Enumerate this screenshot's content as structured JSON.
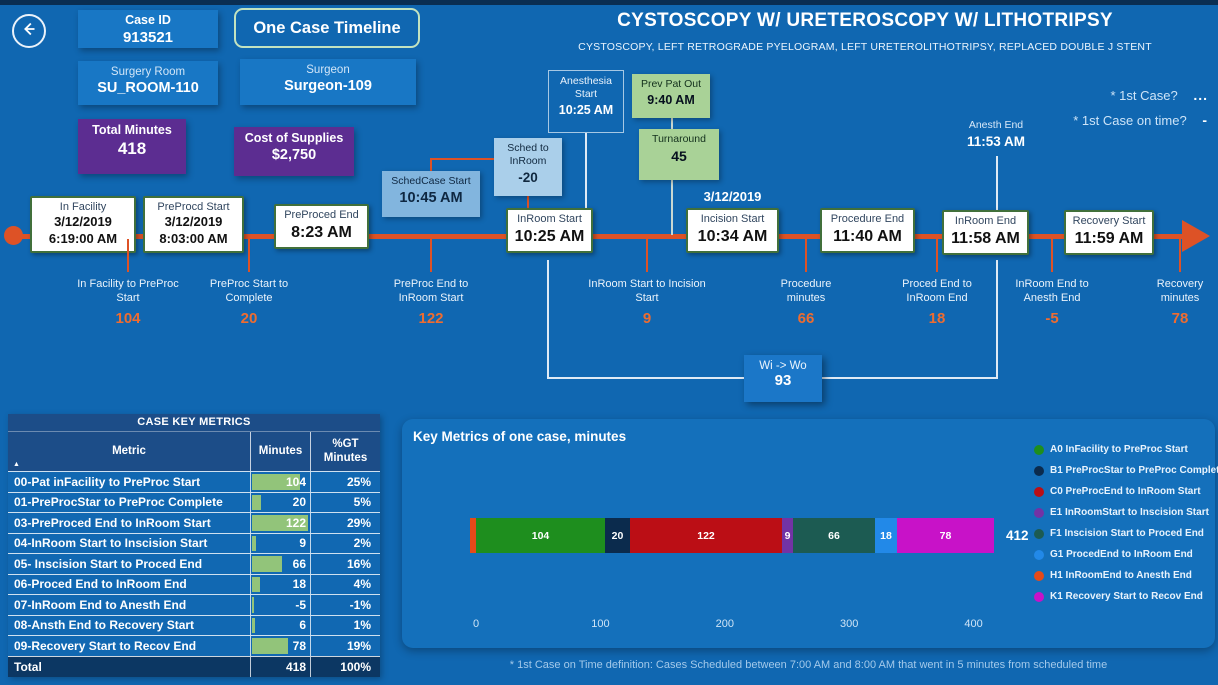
{
  "header": {
    "case_id_label": "Case ID",
    "case_id": "913521",
    "view_button": "One Case Timeline",
    "surgery_room_label": "Surgery Room",
    "surgery_room": "SU_ROOM-110",
    "surgeon_label": "Surgeon",
    "surgeon": "Surgeon-109",
    "total_minutes_label": "Total Minutes",
    "total_minutes": "418",
    "cost_label": "Cost of Supplies",
    "cost": "$2,750",
    "title": "CYSTOSCOPY W/ URETEROSCOPY W/ LITHOTRIPSY",
    "subtitle": "CYSTOSCOPY, LEFT RETROGRADE PYELOGRAM, LEFT URETEROLITHOTRIPSY, REPLACED DOUBLE J STENT"
  },
  "top_right": {
    "q1": "* 1st Case?",
    "a1": "...",
    "q2": "* 1st Case on time?",
    "a2": "-"
  },
  "timeline": {
    "milestones": [
      {
        "label": "In Facility",
        "date": "3/12/2019",
        "time": "6:19:00 AM"
      },
      {
        "label": "PreProcd Start",
        "date": "3/12/2019",
        "time": "8:03:00 AM"
      },
      {
        "label": "PreProced End",
        "time": "8:23 AM"
      },
      {
        "label": "InRoom Start",
        "time": "10:25 AM"
      },
      {
        "label": "Incision Start",
        "time": "10:34 AM",
        "date_above": "3/12/2019"
      },
      {
        "label": "Procedure End",
        "time": "11:40 AM"
      },
      {
        "label": "InRoom End",
        "time": "11:58 AM"
      },
      {
        "label": "Recovery Start",
        "time": "11:59 AM"
      }
    ],
    "floats": [
      {
        "label": "SchedCase Start",
        "value": "10:45 AM"
      },
      {
        "label": "Sched to InRoom",
        "value": "-20"
      },
      {
        "label": "Anesthesia Start",
        "value": "10:25 AM"
      },
      {
        "label": "Prev Pat Out",
        "value": "9:40 AM"
      },
      {
        "label": "Turnaround",
        "value": "45"
      },
      {
        "label": "Anesth End",
        "value": "11:53 AM"
      }
    ],
    "gaps": [
      {
        "label": "In Facility to PreProc Start",
        "value": "104"
      },
      {
        "label": "PreProc Start to Complete",
        "value": "20"
      },
      {
        "label": "PreProc End to InRoom Start",
        "value": "122"
      },
      {
        "label": "InRoom Start to Incision Start",
        "value": "9"
      },
      {
        "label": "Procedure minutes",
        "value": "66"
      },
      {
        "label": "Proced End to InRoom End",
        "value": "18"
      },
      {
        "label": "InRoom End to Anesth End",
        "value": "-5"
      },
      {
        "label": "Recovery minutes",
        "value": "78"
      }
    ],
    "bracket": {
      "label": "Wi -> Wo",
      "value": "93"
    }
  },
  "table": {
    "title": "CASE KEY METRICS",
    "columns": [
      "Metric",
      "Minutes",
      "%GT Minutes"
    ],
    "rows": [
      {
        "metric": "00-Pat inFacility to PreProc Start",
        "minutes": 104,
        "pct": "25%"
      },
      {
        "metric": "01-PreProcStar to PreProc Complete",
        "minutes": 20,
        "pct": "5%"
      },
      {
        "metric": "03-PreProced End to InRoom Start",
        "minutes": 122,
        "pct": "29%"
      },
      {
        "metric": "04-InRoom Start to Inscision Start",
        "minutes": 9,
        "pct": "2%"
      },
      {
        "metric": "05- Inscision Start to Proced End",
        "minutes": 66,
        "pct": "16%"
      },
      {
        "metric": "06-Proced End to InRoom End",
        "minutes": 18,
        "pct": "4%"
      },
      {
        "metric": "07-InRoom End to Anesth End",
        "minutes": -5,
        "pct": "-1%"
      },
      {
        "metric": "08-Ansth End to Recovery Start",
        "minutes": 6,
        "pct": "1%"
      },
      {
        "metric": "09-Recovery Start to Recov End",
        "minutes": 78,
        "pct": "19%"
      }
    ],
    "total": {
      "metric": "Total",
      "minutes": "418",
      "pct": "100%"
    }
  },
  "chart_data": {
    "type": "bar",
    "title": "Key Metrics of one case, minutes",
    "orientation": "horizontal-stacked",
    "series": [
      {
        "name": "A0 InFacility to PreProc Start",
        "value": 104,
        "color": "#1E8E1E"
      },
      {
        "name": "B1 PreProcStar to PreProc Complete",
        "value": 20,
        "color": "#0B2B4D"
      },
      {
        "name": "C0 PreProcEnd to InRoom Start",
        "value": 122,
        "color": "#BB0E15"
      },
      {
        "name": "E1 InRoomStart to Inscision Start",
        "value": 9,
        "color": "#7233A5"
      },
      {
        "name": "F1  Inscision Start to Proced End",
        "value": 66,
        "color": "#1C5B52"
      },
      {
        "name": "G1 ProcedEnd to InRoom End",
        "value": 18,
        "color": "#2289E8"
      },
      {
        "name": "H1 InRoomEnd to Anesth End",
        "value": -5,
        "color": "#E64A19"
      },
      {
        "name": "K1 Recovery Start to Recov End",
        "value": 78,
        "color": "#C812C8"
      }
    ],
    "draw_order": [
      6,
      0,
      1,
      2,
      3,
      4,
      5,
      7
    ],
    "total_label": "412",
    "x_ticks": [
      0,
      100,
      200,
      300,
      400
    ],
    "xlim": [
      -10,
      450
    ],
    "legend_position": "right"
  },
  "footnote": "* 1st Case on Time definition:  Cases Scheduled between 7:00 AM and 8:00 AM that went in 5 minutes from scheduled time"
}
